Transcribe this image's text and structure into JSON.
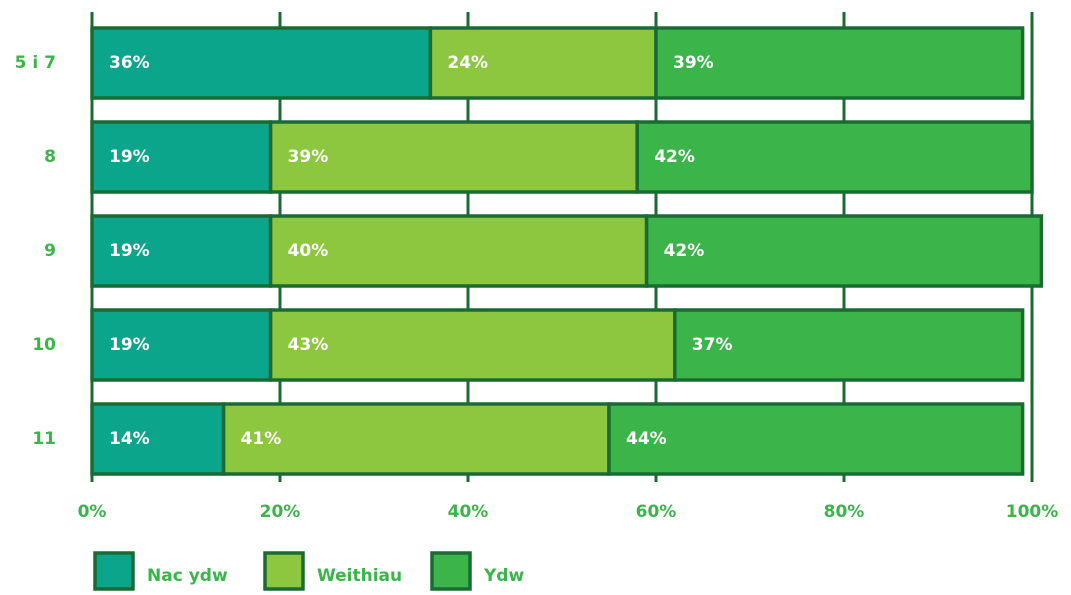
{
  "chart_data": {
    "type": "stacked_barh",
    "categories": [
      "5 i 7",
      "8",
      "9",
      "10",
      "11"
    ],
    "series": [
      {
        "name": "Nac ydw",
        "color": "#0aa58a",
        "values": [
          36,
          19,
          19,
          19,
          14
        ],
        "value_labels": [
          "36%",
          "19%",
          "19%",
          "19%",
          "14%"
        ]
      },
      {
        "name": "Weithiau",
        "color": "#8dc63f",
        "values": [
          24,
          39,
          40,
          43,
          41
        ],
        "value_labels": [
          "24%",
          "39%",
          "40%",
          "43%",
          "41%"
        ]
      },
      {
        "name": "Ydw",
        "color": "#3bb54a",
        "values": [
          39,
          42,
          42,
          37,
          44
        ],
        "value_labels": [
          "39%",
          "42%",
          "42%",
          "37%",
          "44%"
        ]
      }
    ],
    "xlim": [
      0,
      100
    ],
    "xticks": [
      {
        "value": 0,
        "label": "0%"
      },
      {
        "value": 20,
        "label": "20%"
      },
      {
        "value": 40,
        "label": "40%"
      },
      {
        "value": 60,
        "label": "60%"
      },
      {
        "value": 80,
        "label": "80%"
      },
      {
        "value": 100,
        "label": "100%"
      }
    ],
    "grid": true,
    "legend": "bottom"
  }
}
